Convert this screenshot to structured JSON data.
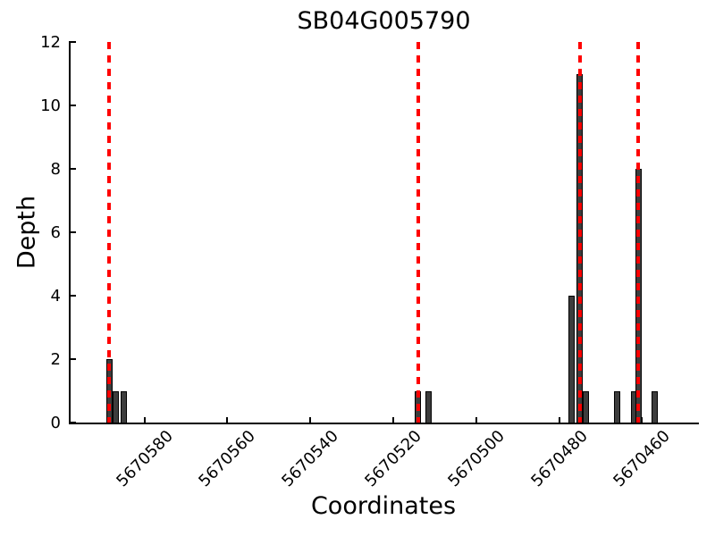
{
  "figure": {
    "title": "SB04G005790"
  },
  "chart_data": {
    "type": "bar",
    "title": "SB04G005790",
    "xlabel": "Coordinates",
    "ylabel": "Depth",
    "x_reversed": true,
    "xlim": [
      5670598,
      5670446.5
    ],
    "ylim": [
      0,
      12
    ],
    "x_ticks": [
      5670580,
      5670560,
      5670540,
      5670520,
      5670500,
      5670480,
      5670460
    ],
    "y_ticks": [
      0,
      2,
      4,
      6,
      8,
      10,
      12
    ],
    "bars": [
      {
        "coord": 5670588.5,
        "depth": 2
      },
      {
        "coord": 5670587.0,
        "depth": 1
      },
      {
        "coord": 5670585.0,
        "depth": 1
      },
      {
        "coord": 5670514.0,
        "depth": 1
      },
      {
        "coord": 5670511.5,
        "depth": 1
      },
      {
        "coord": 5670477.0,
        "depth": 4
      },
      {
        "coord": 5670475.0,
        "depth": 11
      },
      {
        "coord": 5670473.5,
        "depth": 1
      },
      {
        "coord": 5670466.0,
        "depth": 1
      },
      {
        "coord": 5670462.0,
        "depth": 1
      },
      {
        "coord": 5670460.8,
        "depth": 8
      },
      {
        "coord": 5670457.0,
        "depth": 1
      }
    ],
    "vlines": {
      "positions": [
        5670588.5,
        5670514.0,
        5670475.0,
        5670461.0
      ],
      "color": "#ff0000",
      "style": "dashed"
    },
    "styles": {
      "bar_fill": "#3d3d3d",
      "bar_edge": "#000000",
      "axis_color": "#000000",
      "background": "#ffffff"
    },
    "grid": false,
    "legend": null
  }
}
